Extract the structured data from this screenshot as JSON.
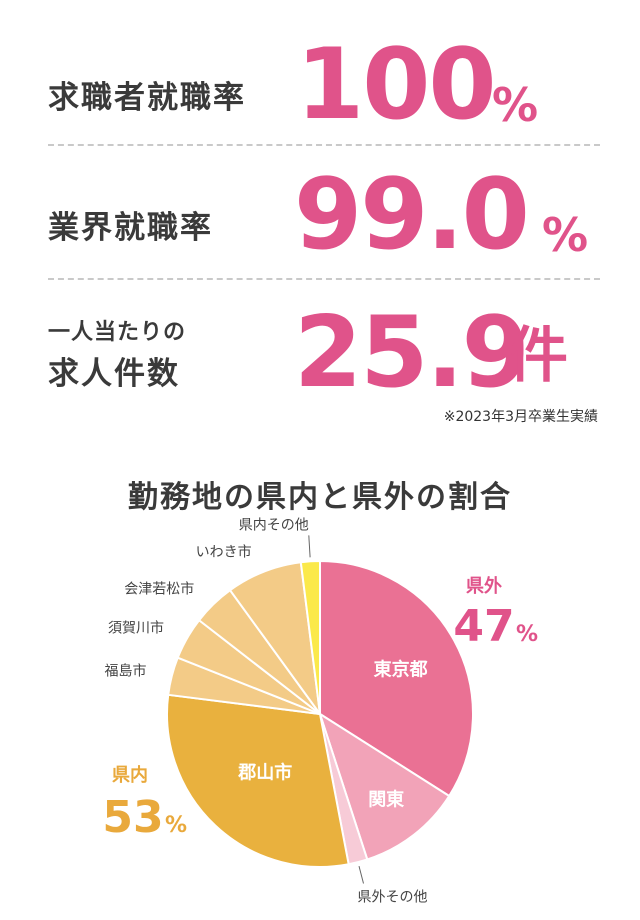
{
  "stats": [
    {
      "label": "求職者就職率",
      "value": "100",
      "unit": "%"
    },
    {
      "label": "業界就職率",
      "value": "99.0",
      "unit": "%"
    },
    {
      "prefix": "一人当たりの",
      "label": "求人件数",
      "value": "25.9",
      "unit": "件"
    }
  ],
  "note": "※2023年3月卒業生実績",
  "colors": {
    "accent_pink": "#e0538a",
    "pink_tokyo": "#ea7194",
    "pink_kanto": "#f2a3b8",
    "pink_other": "#f7cbd7",
    "orange_koriyama": "#e9b13e",
    "light_orange": "#f3cb87",
    "yellow": "#fbe94a",
    "label_orange": "#e9a93c"
  },
  "chart_data": {
    "type": "pie",
    "title": "勤務地の県内と県外の割合",
    "groups": [
      {
        "name": "県外",
        "percent": 47,
        "unit": "%"
      },
      {
        "name": "県内",
        "percent": 53,
        "unit": "%"
      }
    ],
    "slices": [
      {
        "name": "東京都",
        "group": "県外",
        "value": 34
      },
      {
        "name": "関東",
        "group": "県外",
        "value": 11
      },
      {
        "name": "県外その他",
        "group": "県外",
        "value": 2
      },
      {
        "name": "郡山市",
        "group": "県内",
        "value": 30
      },
      {
        "name": "福島市",
        "group": "県内",
        "value": 4
      },
      {
        "name": "須賀川市",
        "group": "県内",
        "value": 4.5
      },
      {
        "name": "会津若松市",
        "group": "県内",
        "value": 4.5
      },
      {
        "name": "いわき市",
        "group": "県内",
        "value": 8
      },
      {
        "name": "県内その他",
        "group": "県内",
        "value": 2
      }
    ]
  }
}
